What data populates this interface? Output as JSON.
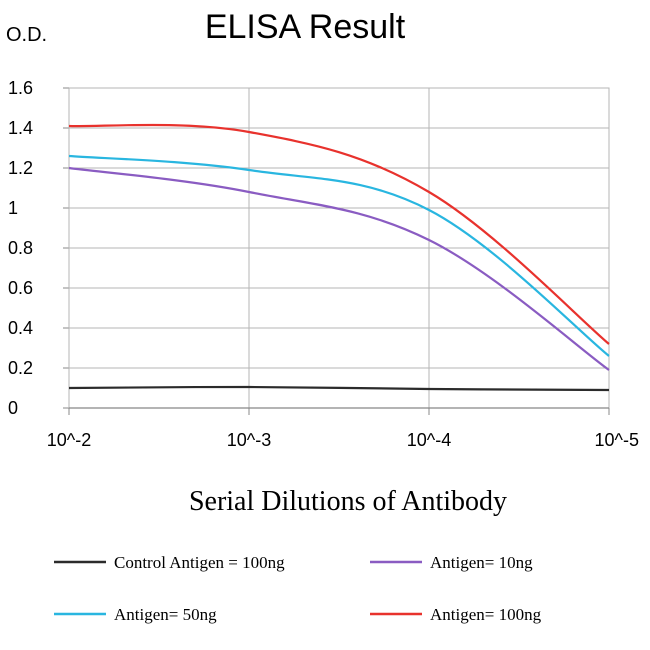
{
  "chart_data": {
    "type": "line",
    "title": "ELISA Result",
    "ylabel": "O.D.",
    "xlabel": "Serial Dilutions of Antibody",
    "categories": [
      "10^-2",
      "10^-3",
      "10^-4",
      "10^-5"
    ],
    "ylim": [
      0,
      1.6
    ],
    "yticks": [
      "1.6",
      "1.4",
      "1.2",
      "1",
      "0.8",
      "0.6",
      "0.4",
      "0.2",
      "0"
    ],
    "ytick_values": [
      1.6,
      1.4,
      1.2,
      1.0,
      0.8,
      0.6,
      0.4,
      0.2,
      0
    ],
    "grid": true,
    "legend_position": "bottom",
    "series": [
      {
        "name": "Control Antigen = 100ng",
        "color": "#2b2b2b",
        "values": [
          0.1,
          0.105,
          0.095,
          0.09
        ]
      },
      {
        "name": "Antigen= 10ng",
        "color": "#8a5cc2",
        "values": [
          1.2,
          1.08,
          0.84,
          0.19
        ]
      },
      {
        "name": "Antigen= 50ng",
        "color": "#29b6e0",
        "values": [
          1.26,
          1.19,
          0.99,
          0.26
        ]
      },
      {
        "name": "Antigen= 100ng",
        "color": "#e8322d",
        "values": [
          1.41,
          1.38,
          1.08,
          0.32
        ]
      }
    ]
  }
}
